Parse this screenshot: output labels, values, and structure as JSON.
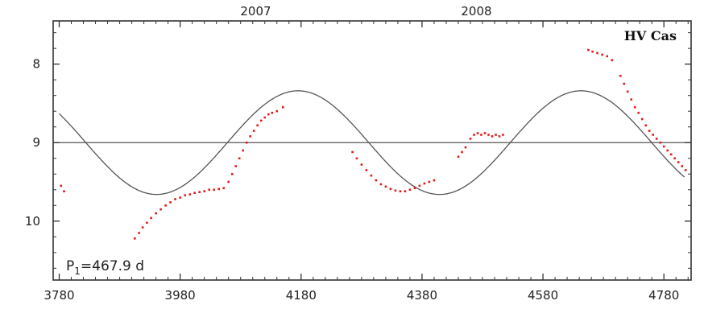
{
  "chart_data": {
    "type": "scatter",
    "title": "HV Cas",
    "xlabel": "",
    "ylabel": "",
    "xlim": [
      3770,
      4825
    ],
    "ylim": [
      10.75,
      7.45
    ],
    "y_inverted": true,
    "x_ticks": [
      3780,
      3980,
      4180,
      4380,
      4580,
      4780
    ],
    "y_ticks": [
      8,
      9,
      10
    ],
    "top_axis_labels": [
      {
        "text": "2007",
        "x": 4105
      },
      {
        "text": "2008",
        "x": 4470
      }
    ],
    "annotation": "P1=467.9 d",
    "annotation_parts": {
      "main": "P",
      "sub": "1",
      "rest": "=467.9 d"
    },
    "reference_line": {
      "y": 9.0
    },
    "fit_curve": {
      "type": "sine",
      "period": 467.9,
      "mean": 9.0,
      "amplitude": 0.66,
      "brightest_at": 4175
    },
    "colors": {
      "points": "#e31a1a",
      "curve": "#555555",
      "axis": "#333333"
    },
    "observations": [
      {
        "x": 3783,
        "y": 9.55
      },
      {
        "x": 3788,
        "y": 9.62
      },
      {
        "x": 3905,
        "y": 10.22
      },
      {
        "x": 3912,
        "y": 10.15
      },
      {
        "x": 3918,
        "y": 10.08
      },
      {
        "x": 3925,
        "y": 10.02
      },
      {
        "x": 3932,
        "y": 9.96
      },
      {
        "x": 3940,
        "y": 9.9
      },
      {
        "x": 3948,
        "y": 9.85
      },
      {
        "x": 3956,
        "y": 9.8
      },
      {
        "x": 3964,
        "y": 9.76
      },
      {
        "x": 3972,
        "y": 9.72
      },
      {
        "x": 3980,
        "y": 9.7
      },
      {
        "x": 3988,
        "y": 9.67
      },
      {
        "x": 3996,
        "y": 9.66
      },
      {
        "x": 4004,
        "y": 9.64
      },
      {
        "x": 4012,
        "y": 9.63
      },
      {
        "x": 4020,
        "y": 9.62
      },
      {
        "x": 4028,
        "y": 9.6
      },
      {
        "x": 4036,
        "y": 9.6
      },
      {
        "x": 4044,
        "y": 9.59
      },
      {
        "x": 4052,
        "y": 9.58
      },
      {
        "x": 4060,
        "y": 9.5
      },
      {
        "x": 4066,
        "y": 9.4
      },
      {
        "x": 4072,
        "y": 9.3
      },
      {
        "x": 4078,
        "y": 9.2
      },
      {
        "x": 4084,
        "y": 9.1
      },
      {
        "x": 4090,
        "y": 9.0
      },
      {
        "x": 4096,
        "y": 8.92
      },
      {
        "x": 4102,
        "y": 8.85
      },
      {
        "x": 4108,
        "y": 8.78
      },
      {
        "x": 4114,
        "y": 8.72
      },
      {
        "x": 4120,
        "y": 8.68
      },
      {
        "x": 4126,
        "y": 8.64
      },
      {
        "x": 4132,
        "y": 8.62
      },
      {
        "x": 4140,
        "y": 8.6
      },
      {
        "x": 4150,
        "y": 8.55
      },
      {
        "x": 4265,
        "y": 9.12
      },
      {
        "x": 4272,
        "y": 9.2
      },
      {
        "x": 4280,
        "y": 9.28
      },
      {
        "x": 4288,
        "y": 9.35
      },
      {
        "x": 4296,
        "y": 9.42
      },
      {
        "x": 4304,
        "y": 9.48
      },
      {
        "x": 4312,
        "y": 9.53
      },
      {
        "x": 4320,
        "y": 9.56
      },
      {
        "x": 4328,
        "y": 9.59
      },
      {
        "x": 4336,
        "y": 9.61
      },
      {
        "x": 4344,
        "y": 9.62
      },
      {
        "x": 4352,
        "y": 9.62
      },
      {
        "x": 4360,
        "y": 9.6
      },
      {
        "x": 4368,
        "y": 9.58
      },
      {
        "x": 4376,
        "y": 9.55
      },
      {
        "x": 4384,
        "y": 9.52
      },
      {
        "x": 4392,
        "y": 9.5
      },
      {
        "x": 4400,
        "y": 9.48
      },
      {
        "x": 4440,
        "y": 9.18
      },
      {
        "x": 4446,
        "y": 9.12
      },
      {
        "x": 4452,
        "y": 9.06
      },
      {
        "x": 4460,
        "y": 8.95
      },
      {
        "x": 4466,
        "y": 8.9
      },
      {
        "x": 4472,
        "y": 8.88
      },
      {
        "x": 4478,
        "y": 8.9
      },
      {
        "x": 4484,
        "y": 8.88
      },
      {
        "x": 4490,
        "y": 8.9
      },
      {
        "x": 4496,
        "y": 8.92
      },
      {
        "x": 4502,
        "y": 8.9
      },
      {
        "x": 4508,
        "y": 8.92
      },
      {
        "x": 4514,
        "y": 8.9
      },
      {
        "x": 4655,
        "y": 7.82
      },
      {
        "x": 4662,
        "y": 7.84
      },
      {
        "x": 4670,
        "y": 7.86
      },
      {
        "x": 4678,
        "y": 7.88
      },
      {
        "x": 4686,
        "y": 7.9
      },
      {
        "x": 4694,
        "y": 7.95
      },
      {
        "x": 4708,
        "y": 8.15
      },
      {
        "x": 4714,
        "y": 8.25
      },
      {
        "x": 4720,
        "y": 8.35
      },
      {
        "x": 4726,
        "y": 8.45
      },
      {
        "x": 4732,
        "y": 8.55
      },
      {
        "x": 4738,
        "y": 8.62
      },
      {
        "x": 4744,
        "y": 8.7
      },
      {
        "x": 4750,
        "y": 8.78
      },
      {
        "x": 4756,
        "y": 8.85
      },
      {
        "x": 4762,
        "y": 8.9
      },
      {
        "x": 4768,
        "y": 8.95
      },
      {
        "x": 4774,
        "y": 9.0
      },
      {
        "x": 4780,
        "y": 9.05
      },
      {
        "x": 4786,
        "y": 9.1
      },
      {
        "x": 4792,
        "y": 9.15
      },
      {
        "x": 4798,
        "y": 9.2
      },
      {
        "x": 4804,
        "y": 9.25
      },
      {
        "x": 4810,
        "y": 9.3
      },
      {
        "x": 4816,
        "y": 9.35
      }
    ]
  }
}
